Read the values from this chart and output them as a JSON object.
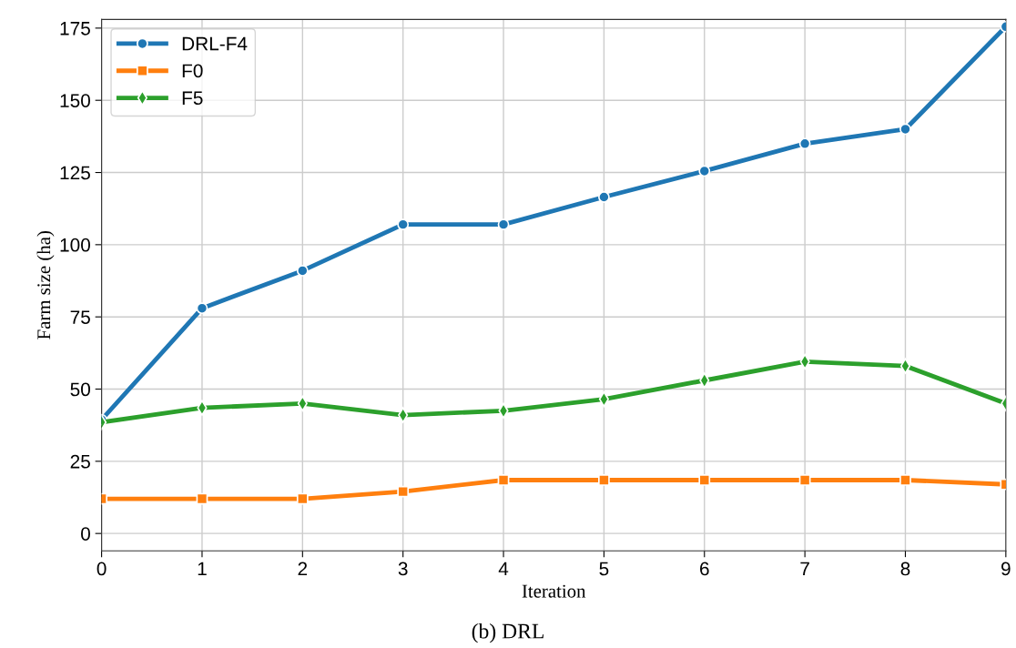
{
  "chart_data": {
    "type": "line",
    "xlabel": "Iteration",
    "ylabel": "Farm size (ha)",
    "x": [
      0,
      1,
      2,
      3,
      4,
      5,
      6,
      7,
      8,
      9
    ],
    "series": [
      {
        "name": "DRL-F4",
        "color": "#1f77b4",
        "marker": "circle",
        "values": [
          39.4,
          78,
          91,
          107,
          107,
          116.5,
          125.5,
          135,
          140,
          175.5
        ]
      },
      {
        "name": "F0",
        "color": "#ff7f0e",
        "marker": "square",
        "values": [
          12,
          12,
          12,
          14.5,
          18.5,
          18.5,
          18.5,
          18.5,
          18.5,
          17
        ]
      },
      {
        "name": "F5",
        "color": "#2ca02c",
        "marker": "diamond",
        "values": [
          38.5,
          43.5,
          45,
          41,
          42.5,
          46.5,
          53,
          59.5,
          58,
          45
        ]
      }
    ],
    "xlim": [
      0,
      9
    ],
    "xticks": [
      0,
      1,
      2,
      3,
      4,
      5,
      6,
      7,
      8,
      9
    ],
    "ylim": [
      -6,
      178
    ],
    "yticks": [
      0,
      25,
      50,
      75,
      100,
      125,
      150,
      175
    ],
    "grid": true,
    "legend": "top left",
    "line_style": "solid",
    "annotations": [
      "(b) DRL"
    ]
  }
}
